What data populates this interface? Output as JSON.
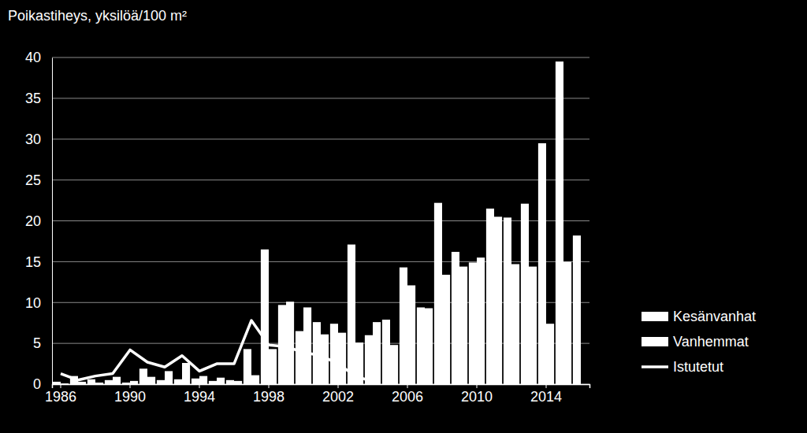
{
  "chart_data": {
    "type": "bar",
    "title": "Poikastiheys, yksilöä/100 m²",
    "categories": [
      "1986",
      null,
      null,
      null,
      "1990",
      null,
      null,
      null,
      "1994",
      null,
      null,
      null,
      "1998",
      null,
      null,
      null,
      "2002",
      null,
      null,
      null,
      "2006",
      null,
      null,
      null,
      "2010",
      null,
      null,
      null,
      "2014",
      null,
      null
    ],
    "series": [
      {
        "name": "Kesänvanhat",
        "color": "#ffffff",
        "type": "bar",
        "values": [
          0.3,
          1.0,
          0.6,
          0.5,
          0.2,
          1.9,
          0.5,
          0.6,
          0.7,
          0.4,
          0.5,
          4.3,
          16.5,
          9.7,
          6.5,
          7.6,
          7.4,
          17.1,
          6.0,
          7.9,
          14.3,
          9.4,
          22.2,
          16.2,
          14.9,
          21.5,
          20.4,
          22.1,
          29.5,
          39.5,
          18.2
        ]
      },
      {
        "name": "Vanhemmat",
        "color": "#ffffff",
        "type": "bar",
        "values": [
          0.1,
          0.3,
          0.2,
          0.9,
          0.4,
          0.9,
          1.6,
          2.6,
          1.0,
          0.8,
          0.4,
          1.1,
          4.3,
          10.1,
          9.4,
          6.1,
          6.3,
          5.1,
          7.6,
          4.8,
          12.1,
          9.3,
          13.4,
          14.4,
          15.5,
          20.5,
          14.7,
          14.4,
          7.4,
          15.0,
          null
        ]
      },
      {
        "name": "Istutetut",
        "color": "#ffffff",
        "type": "line",
        "values": [
          1.3,
          0.5,
          1.0,
          1.3,
          4.2,
          2.7,
          2.1,
          3.5,
          1.6,
          2.5,
          2.5,
          7.8,
          4.8,
          4.6,
          3.9,
          3.5,
          2.5,
          1.0,
          0.3,
          null,
          null,
          null,
          null,
          null,
          null,
          null,
          null,
          null,
          null,
          null,
          null
        ]
      }
    ],
    "ylim": [
      0,
      40
    ],
    "yticks": [
      0,
      5,
      10,
      15,
      20,
      25,
      30,
      35,
      40
    ],
    "grid": true,
    "legend": "right"
  }
}
